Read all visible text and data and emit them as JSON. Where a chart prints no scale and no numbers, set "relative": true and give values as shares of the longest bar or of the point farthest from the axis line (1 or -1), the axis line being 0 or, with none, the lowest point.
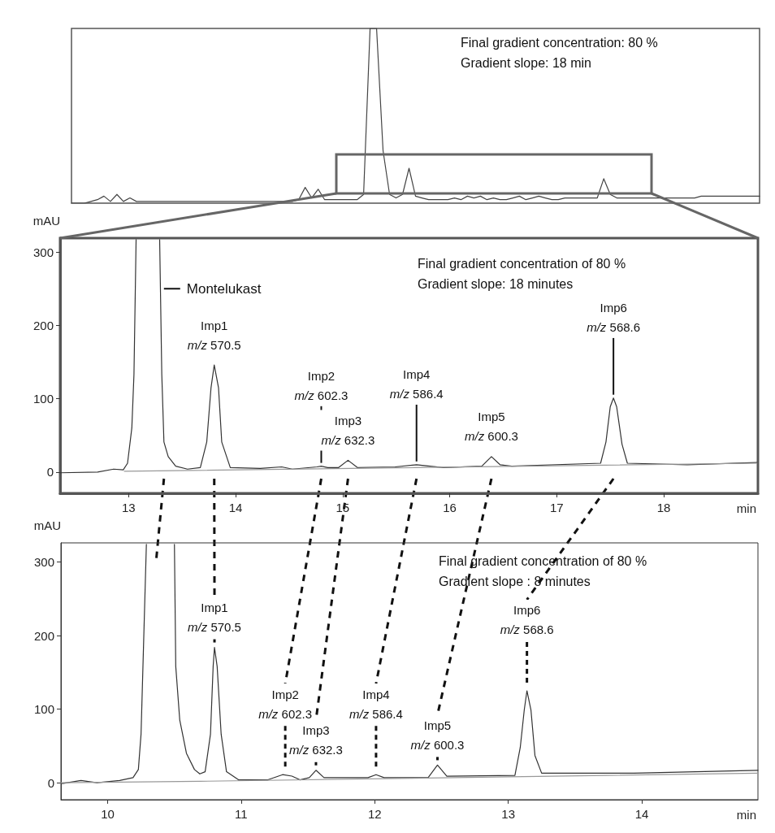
{
  "chart_data": [
    {
      "type": "line",
      "relative": true,
      "categories": [
        null,
        null,
        null,
        null,
        null,
        null,
        null,
        null,
        null,
        null,
        null,
        null,
        null,
        null,
        null,
        null,
        null,
        null,
        null,
        null,
        null,
        null,
        null,
        null,
        null,
        null,
        null,
        null,
        null,
        null,
        null,
        null,
        null,
        null,
        null,
        null,
        null,
        null,
        null,
        null,
        null,
        null,
        null,
        null,
        null,
        null,
        null,
        null,
        null,
        null,
        null,
        null,
        null,
        null,
        null,
        null,
        null,
        null,
        null,
        null,
        null,
        null,
        null,
        null,
        null,
        null,
        null,
        null,
        null,
        null,
        null,
        null,
        null,
        null,
        null,
        null,
        null,
        null,
        null,
        null,
        null,
        null,
        null,
        null,
        null,
        null,
        null,
        null,
        null,
        null,
        null,
        null,
        null,
        null,
        null,
        null,
        null,
        null,
        null,
        null,
        null,
        null,
        null,
        null,
        null,
        null,
        null
      ],
      "series": [
        {
          "color": "#444444",
          "values": [
            0,
            0,
            0,
            0.01,
            0.02,
            0.04,
            0.01,
            0.05,
            0.01,
            0.03,
            0.01,
            0.01,
            0.01,
            0.01,
            0.01,
            0.01,
            0.01,
            0.01,
            0.01,
            0.01,
            0.01,
            0.01,
            0.01,
            0.01,
            0.01,
            0.01,
            0.01,
            0.01,
            0.01,
            0.01,
            0.01,
            0.01,
            0.01,
            0.01,
            0.01,
            0.02,
            0.09,
            0.03,
            0.08,
            0.02,
            0.02,
            0.02,
            0.02,
            0.02,
            0.02,
            0.05,
            1,
            1,
            0.3,
            0.05,
            0.03,
            0.05,
            0.2,
            0.04,
            0.03,
            0.02,
            0.02,
            0.02,
            0.02,
            0.03,
            0.02,
            0.04,
            0.03,
            0.04,
            0.02,
            0.03,
            0.02,
            0.02,
            0.03,
            0.04,
            0.02,
            0.03,
            0.04,
            0.03,
            0.02,
            0.02,
            0.03,
            0.03,
            0.03,
            0.03,
            0.03,
            0.03,
            0.14,
            0.05,
            0.03,
            0.03,
            0.03,
            0.03,
            0.03,
            0.03,
            0.03,
            0.03,
            0.03,
            0.03,
            0.03,
            0.03,
            0.03,
            0.04,
            0.04,
            0.04,
            0.04,
            0.04,
            0.04,
            0.04,
            0.04,
            0.04,
            0.04
          ]
        }
      ],
      "annotations": [
        "Final gradient concentration: 80 %",
        "Gradient slope: 18 min"
      ]
    },
    {
      "type": "line",
      "xlabel": "min",
      "ylabel": "mAU",
      "xlim": [
        12.36,
        18.88
      ],
      "xticks": [
        13,
        14,
        15,
        16,
        17,
        18
      ],
      "ylim": [
        -29,
        319
      ],
      "yticks": [
        0,
        100,
        200,
        300
      ],
      "series": [
        {
          "color": "#333333",
          "x": [
            12.36,
            12.71,
            12.86,
            12.95,
            12.99,
            13.03,
            13.05,
            13.07,
            13.18,
            13.29,
            13.31,
            13.33,
            13.37,
            13.44,
            13.55,
            13.67,
            13.73,
            13.77,
            13.8,
            13.84,
            13.87,
            13.95,
            14.23,
            14.43,
            14.53,
            14.76,
            14.8,
            14.86,
            14.96,
            15.05,
            15.14,
            15.49,
            15.69,
            15.94,
            16.3,
            16.39,
            16.47,
            16.58,
            17.41,
            17.46,
            17.5,
            17.53,
            17.56,
            17.61,
            17.66,
            18.22,
            18.87
          ],
          "values": [
            -1,
            0,
            4,
            3,
            12,
            60,
            133,
            317,
            null,
            317,
            133,
            41,
            21,
            8,
            4,
            6,
            41,
            115,
            146,
            115,
            41,
            6,
            5,
            7,
            4,
            7,
            8,
            6,
            6,
            16,
            6,
            7,
            10,
            6,
            8,
            21,
            10,
            8,
            12,
            41,
            89,
            101,
            89,
            38,
            12,
            10,
            13
          ]
        },
        {
          "color": "#999999",
          "x": [
            12.96,
            18.87
          ],
          "values": [
            1,
            12
          ]
        }
      ],
      "annotations": [
        "Final gradient concentration of 80 %",
        "Gradient slope: 18 minutes",
        {
          "text": "Montelukast",
          "x": 13.33,
          "y": 250
        },
        {
          "text": "Imp1\nm/z 570.5",
          "x": 13.8,
          "y": 146
        },
        {
          "text": "Imp2\nm/z 602.3",
          "x": 14.8,
          "y": 8
        },
        {
          "text": "Imp3\nm/z 632.3",
          "x": 15.05,
          "y": 16
        },
        {
          "text": "Imp4\nm/z 586.4",
          "x": 15.69,
          "y": 10
        },
        {
          "text": "Imp5\nm/z 600.3",
          "x": 16.39,
          "y": 21
        },
        {
          "text": "Imp6\nm/z 568.6",
          "x": 17.53,
          "y": 101
        }
      ]
    },
    {
      "type": "line",
      "xlabel": "min",
      "ylabel": "mAU",
      "xlim": [
        9.65,
        14.87
      ],
      "xticks": [
        10,
        11,
        12,
        13,
        14
      ],
      "ylim": [
        -23,
        326
      ],
      "yticks": [
        0,
        100,
        200,
        300
      ],
      "series": [
        {
          "color": "#333333",
          "x": [
            9.66,
            9.8,
            9.92,
            10.09,
            10.19,
            10.23,
            10.25,
            10.27,
            10.29,
            10.4,
            10.5,
            10.51,
            10.54,
            10.59,
            10.65,
            10.69,
            10.73,
            10.77,
            10.79,
            10.8,
            10.82,
            10.85,
            10.89,
            10.98,
            11.2,
            11.31,
            11.38,
            11.44,
            11.51,
            11.56,
            11.62,
            11.95,
            12.01,
            12.07,
            12.4,
            12.47,
            12.54,
            13.05,
            13.09,
            13.12,
            13.14,
            13.17,
            13.2,
            13.25,
            13.94,
            14.87
          ],
          "values": [
            -1,
            3,
            0,
            3,
            7,
            18,
            66,
            195,
            324,
            null,
            324,
            158,
            85,
            40,
            18,
            12,
            15,
            66,
            158,
            184,
            158,
            66,
            15,
            4,
            4,
            11,
            9,
            4,
            7,
            17,
            7,
            7,
            11,
            7,
            7,
            24,
            9,
            10,
            48,
            99,
            125,
            99,
            37,
            13,
            13,
            17
          ]
        },
        {
          "color": "#999999",
          "x": [
            9.65,
            10.69,
            14.87
          ],
          "values": [
            0,
            2,
            13
          ]
        }
      ],
      "annotations": [
        "Final gradient concentration of 80 %",
        "Gradient slope : 8 minutes",
        {
          "text": "Imp1\nm/z 570.5",
          "x": 10.8,
          "y": 184
        },
        {
          "text": "Imp2\nm/z 602.3",
          "x": 11.33,
          "y": 11
        },
        {
          "text": "Imp3\nm/z 632.3",
          "x": 11.56,
          "y": 17
        },
        {
          "text": "Imp4\nm/z 586.4",
          "x": 12.01,
          "y": 11
        },
        {
          "text": "Imp5\nm/z 600.3",
          "x": 12.47,
          "y": 24
        },
        {
          "text": "Imp6\nm/z 568.6",
          "x": 13.14,
          "y": 125
        }
      ]
    }
  ]
}
